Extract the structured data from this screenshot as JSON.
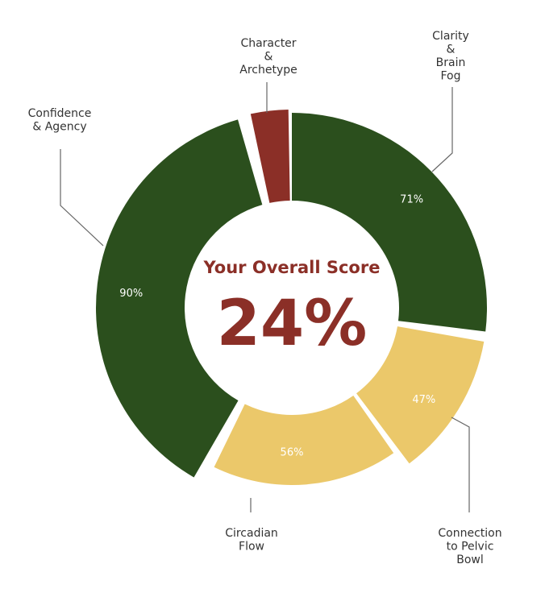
{
  "chart_data": {
    "type": "pie",
    "center_title": "Your Overall Score",
    "center_value": "24%",
    "slices": [
      {
        "name": "Clarity & Brain Fog",
        "label_lines": [
          "Clarity",
          "&",
          "Brain",
          "Fog"
        ],
        "value": 71,
        "value_label": "71%",
        "color": "#2b4f1d"
      },
      {
        "name": "Connection to Pelvic Bowl",
        "label_lines": [
          "Connection",
          "to Pelvic",
          "Bowl"
        ],
        "value": 47,
        "value_label": "47%",
        "color": "#ebc86a"
      },
      {
        "name": "Circadian Flow",
        "label_lines": [
          "Circadian",
          "Flow"
        ],
        "value": 56,
        "value_label": "56%",
        "color": "#ebc86a"
      },
      {
        "name": "Confidence & Agency",
        "label_lines": [
          "Confidence",
          "& Agency"
        ],
        "value": 90,
        "value_label": "90%",
        "color": "#2b4f1d"
      },
      {
        "name": "Character & Archetype",
        "label_lines": [
          "Character",
          "&",
          "Archetype"
        ],
        "value": 24,
        "value_label": "",
        "color": "#8b2f27"
      }
    ],
    "accent_color": "#8b2f27"
  }
}
